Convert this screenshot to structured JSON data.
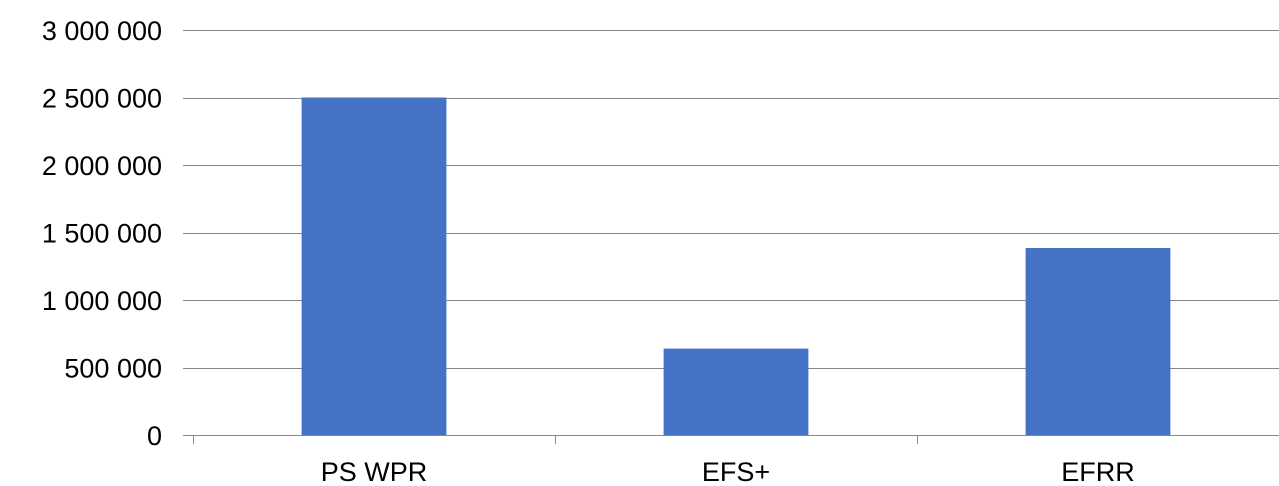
{
  "chart_data": {
    "type": "bar",
    "title": "",
    "xlabel": "",
    "ylabel": "",
    "categories": [
      "PS WPR",
      "EFS+",
      "EFRR"
    ],
    "values": [
      2500000,
      640000,
      1385000
    ],
    "ylim": [
      0,
      3000000
    ],
    "yticks": [
      0,
      500000,
      1000000,
      1500000,
      2000000,
      2500000,
      3000000
    ],
    "ytick_labels": [
      "0",
      "500 000",
      "1 000 000",
      "1 500 000",
      "2 000 000",
      "2 500 000",
      "3 000 000"
    ],
    "grid": true,
    "legend": "none",
    "colors": {
      "bar": "#4472C4",
      "grid": "#888888",
      "axis": "#888888",
      "text": "#000000"
    }
  }
}
